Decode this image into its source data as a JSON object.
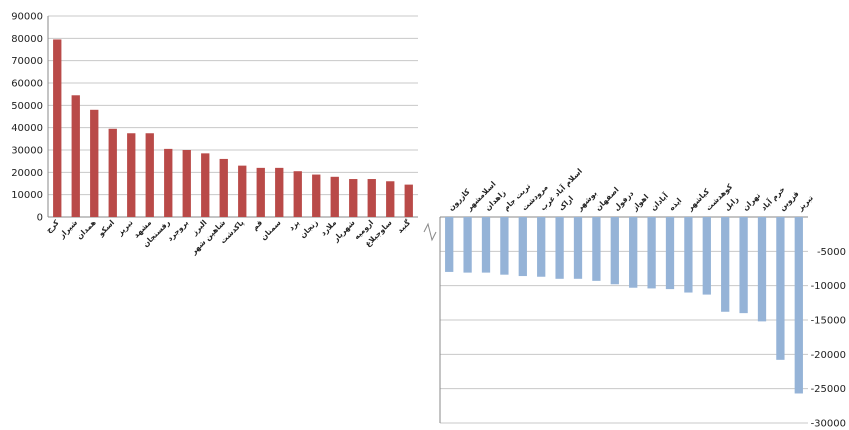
{
  "chart_data": [
    {
      "type": "bar",
      "color": "#b94a48",
      "ylim": [
        0,
        90000
      ],
      "yticks": [
        0,
        10000,
        20000,
        30000,
        40000,
        50000,
        60000,
        70000,
        80000,
        90000
      ],
      "grid": true,
      "categories": [
        "کرج",
        "شیراز",
        "همدان",
        "اسکو",
        "تبریز",
        "مشهد",
        "رفسنجان",
        "بروجرد",
        "البرز",
        "شاهین شهر",
        "پاکدشت",
        "قم",
        "سمنان",
        "یزد",
        "زنجان",
        "ملارد",
        "شهریار",
        "ارومیه",
        "ساوجبلاغ",
        "گنبد"
      ],
      "values": [
        79500,
        54500,
        48000,
        39500,
        37500,
        37500,
        30500,
        30000,
        28500,
        26000,
        23000,
        22000,
        22000,
        20500,
        19000,
        18000,
        17000,
        17000,
        16000,
        14500
      ]
    },
    {
      "type": "bar",
      "color": "#95b3d7",
      "ylim": [
        -30000,
        0
      ],
      "yticks": [
        -5000,
        -10000,
        -15000,
        -20000,
        -25000,
        -30000
      ],
      "grid": true,
      "categories": [
        "کازرون",
        "اسلامشهر",
        "زاهدان",
        "تربت جام",
        "مرودشت",
        "اسلام آباد غرب",
        "اراک",
        "بوشهر",
        "اصفهان",
        "دزفول",
        "اهواز",
        "آبادان",
        "ایذه",
        "کیاشهر",
        "کوهدشت",
        "زابل",
        "تهران",
        "خرم آباد",
        "قزوین",
        "تبریز"
      ],
      "values": [
        -8000,
        -8100,
        -8100,
        -8400,
        -8600,
        -8700,
        -9000,
        -9000,
        -9300,
        -9800,
        -10300,
        -10400,
        -10500,
        -11000,
        -11300,
        -13800,
        -14000,
        -15200,
        -20800,
        -25700
      ]
    }
  ]
}
